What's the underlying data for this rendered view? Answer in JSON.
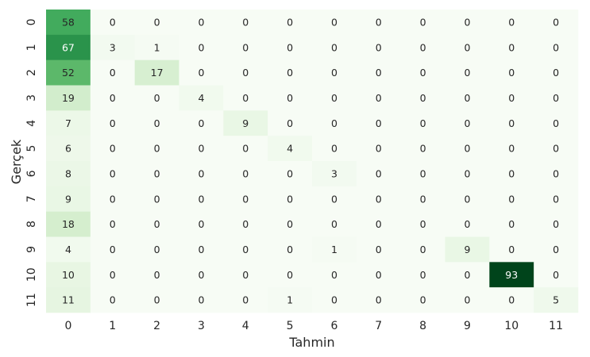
{
  "chart_data": {
    "type": "heatmap",
    "xlabel": "Tahmin",
    "ylabel": "Gerçek",
    "x_categories": [
      "0",
      "1",
      "2",
      "3",
      "4",
      "5",
      "6",
      "7",
      "8",
      "9",
      "10",
      "11"
    ],
    "y_categories": [
      "0",
      "1",
      "2",
      "3",
      "4",
      "5",
      "6",
      "7",
      "8",
      "9",
      "10",
      "11"
    ],
    "values": [
      [
        58,
        0,
        0,
        0,
        0,
        0,
        0,
        0,
        0,
        0,
        0,
        0
      ],
      [
        67,
        3,
        1,
        0,
        0,
        0,
        0,
        0,
        0,
        0,
        0,
        0
      ],
      [
        52,
        0,
        17,
        0,
        0,
        0,
        0,
        0,
        0,
        0,
        0,
        0
      ],
      [
        19,
        0,
        0,
        4,
        0,
        0,
        0,
        0,
        0,
        0,
        0,
        0
      ],
      [
        7,
        0,
        0,
        0,
        9,
        0,
        0,
        0,
        0,
        0,
        0,
        0
      ],
      [
        6,
        0,
        0,
        0,
        0,
        4,
        0,
        0,
        0,
        0,
        0,
        0
      ],
      [
        8,
        0,
        0,
        0,
        0,
        0,
        3,
        0,
        0,
        0,
        0,
        0
      ],
      [
        9,
        0,
        0,
        0,
        0,
        0,
        0,
        0,
        0,
        0,
        0,
        0
      ],
      [
        18,
        0,
        0,
        0,
        0,
        0,
        0,
        0,
        0,
        0,
        0,
        0
      ],
      [
        4,
        0,
        0,
        0,
        0,
        0,
        1,
        0,
        0,
        9,
        0,
        0
      ],
      [
        10,
        0,
        0,
        0,
        0,
        0,
        0,
        0,
        0,
        0,
        93,
        0
      ],
      [
        11,
        0,
        0,
        0,
        0,
        1,
        0,
        0,
        0,
        0,
        0,
        5
      ]
    ],
    "colormap": "Greens",
    "color_range": [
      0,
      93
    ],
    "annotations": true,
    "colorbar": false,
    "grid": false
  }
}
